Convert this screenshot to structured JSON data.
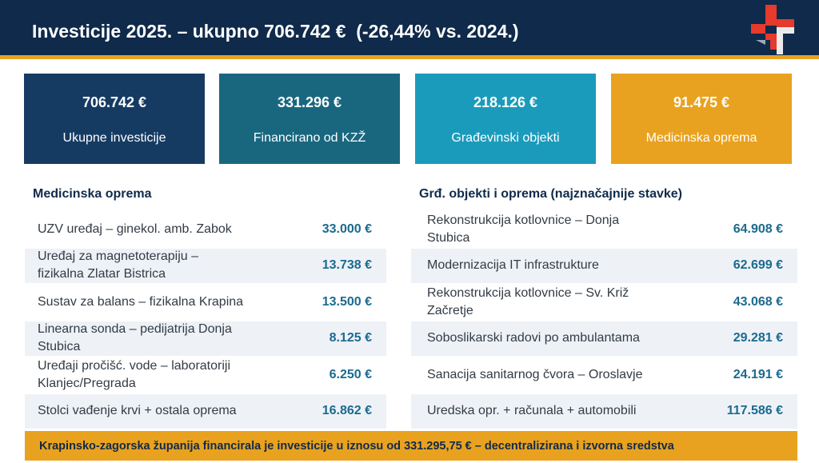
{
  "header": {
    "title": "Investicije 2025. – ukupno 706.742 €  (-26,44% vs. 2024.)",
    "logo_icon": "medical-cross-logo-icon"
  },
  "kpis": [
    {
      "value": "706.742 €",
      "label": "Ukupne investicije",
      "color": "#163b63"
    },
    {
      "value": "331.296 €",
      "label": "Financirano od KZŽ",
      "color": "#19677f"
    },
    {
      "value": "218.126 €",
      "label": "Građevinski objekti",
      "color": "#1b9bbb"
    },
    {
      "value": "91.475 €",
      "label": "Medicinska oprema",
      "color": "#e9a21f"
    }
  ],
  "left_table": {
    "title": "Medicinska oprema",
    "rows": [
      {
        "label": "UZV uređaj – ginekol. amb. Zabok",
        "value": "33.000 €"
      },
      {
        "label": "Uređaj za magnetoterapiju –\nfizikalna Zlatar Bistrica",
        "value": "13.738 €"
      },
      {
        "label": "Sustav za balans – fizikalna Krapina",
        "value": "13.500 €"
      },
      {
        "label": "Linearna sonda – pedijatrija Donja\nStubica",
        "value": "8.125 €"
      },
      {
        "label": "Uređaji pročišć. vode – laboratoriji\nKlanjec/Pregrada",
        "value": "6.250 €"
      },
      {
        "label": "Stolci vađenje krvi + ostala oprema",
        "value": "16.862 €"
      }
    ]
  },
  "right_table": {
    "title": "Grđ. objekti i oprema (najznačajnije stavke)",
    "rows": [
      {
        "label": "Rekonstrukcija kotlovnice – Donja\nStubica",
        "value": "64.908 €"
      },
      {
        "label": "Modernizacija IT infrastrukture",
        "value": "62.699 €"
      },
      {
        "label": "Rekonstrukcija kotlovnice – Sv. Križ\nZačretje",
        "value": "43.068 €"
      },
      {
        "label": "Soboslikarski radovi po ambulantama",
        "value": "29.281 €"
      },
      {
        "label": "Sanacija sanitarnog čvora – Oroslavje",
        "value": "24.191 €"
      },
      {
        "label": "Uredska opr. + računala + automobili",
        "value": "117.586 €"
      }
    ]
  },
  "footer": {
    "text": "Krapinsko-zagorska županija financirala je investicije u iznosu od 331.295,75 € – decentralizirana i izvorna sredstva"
  }
}
